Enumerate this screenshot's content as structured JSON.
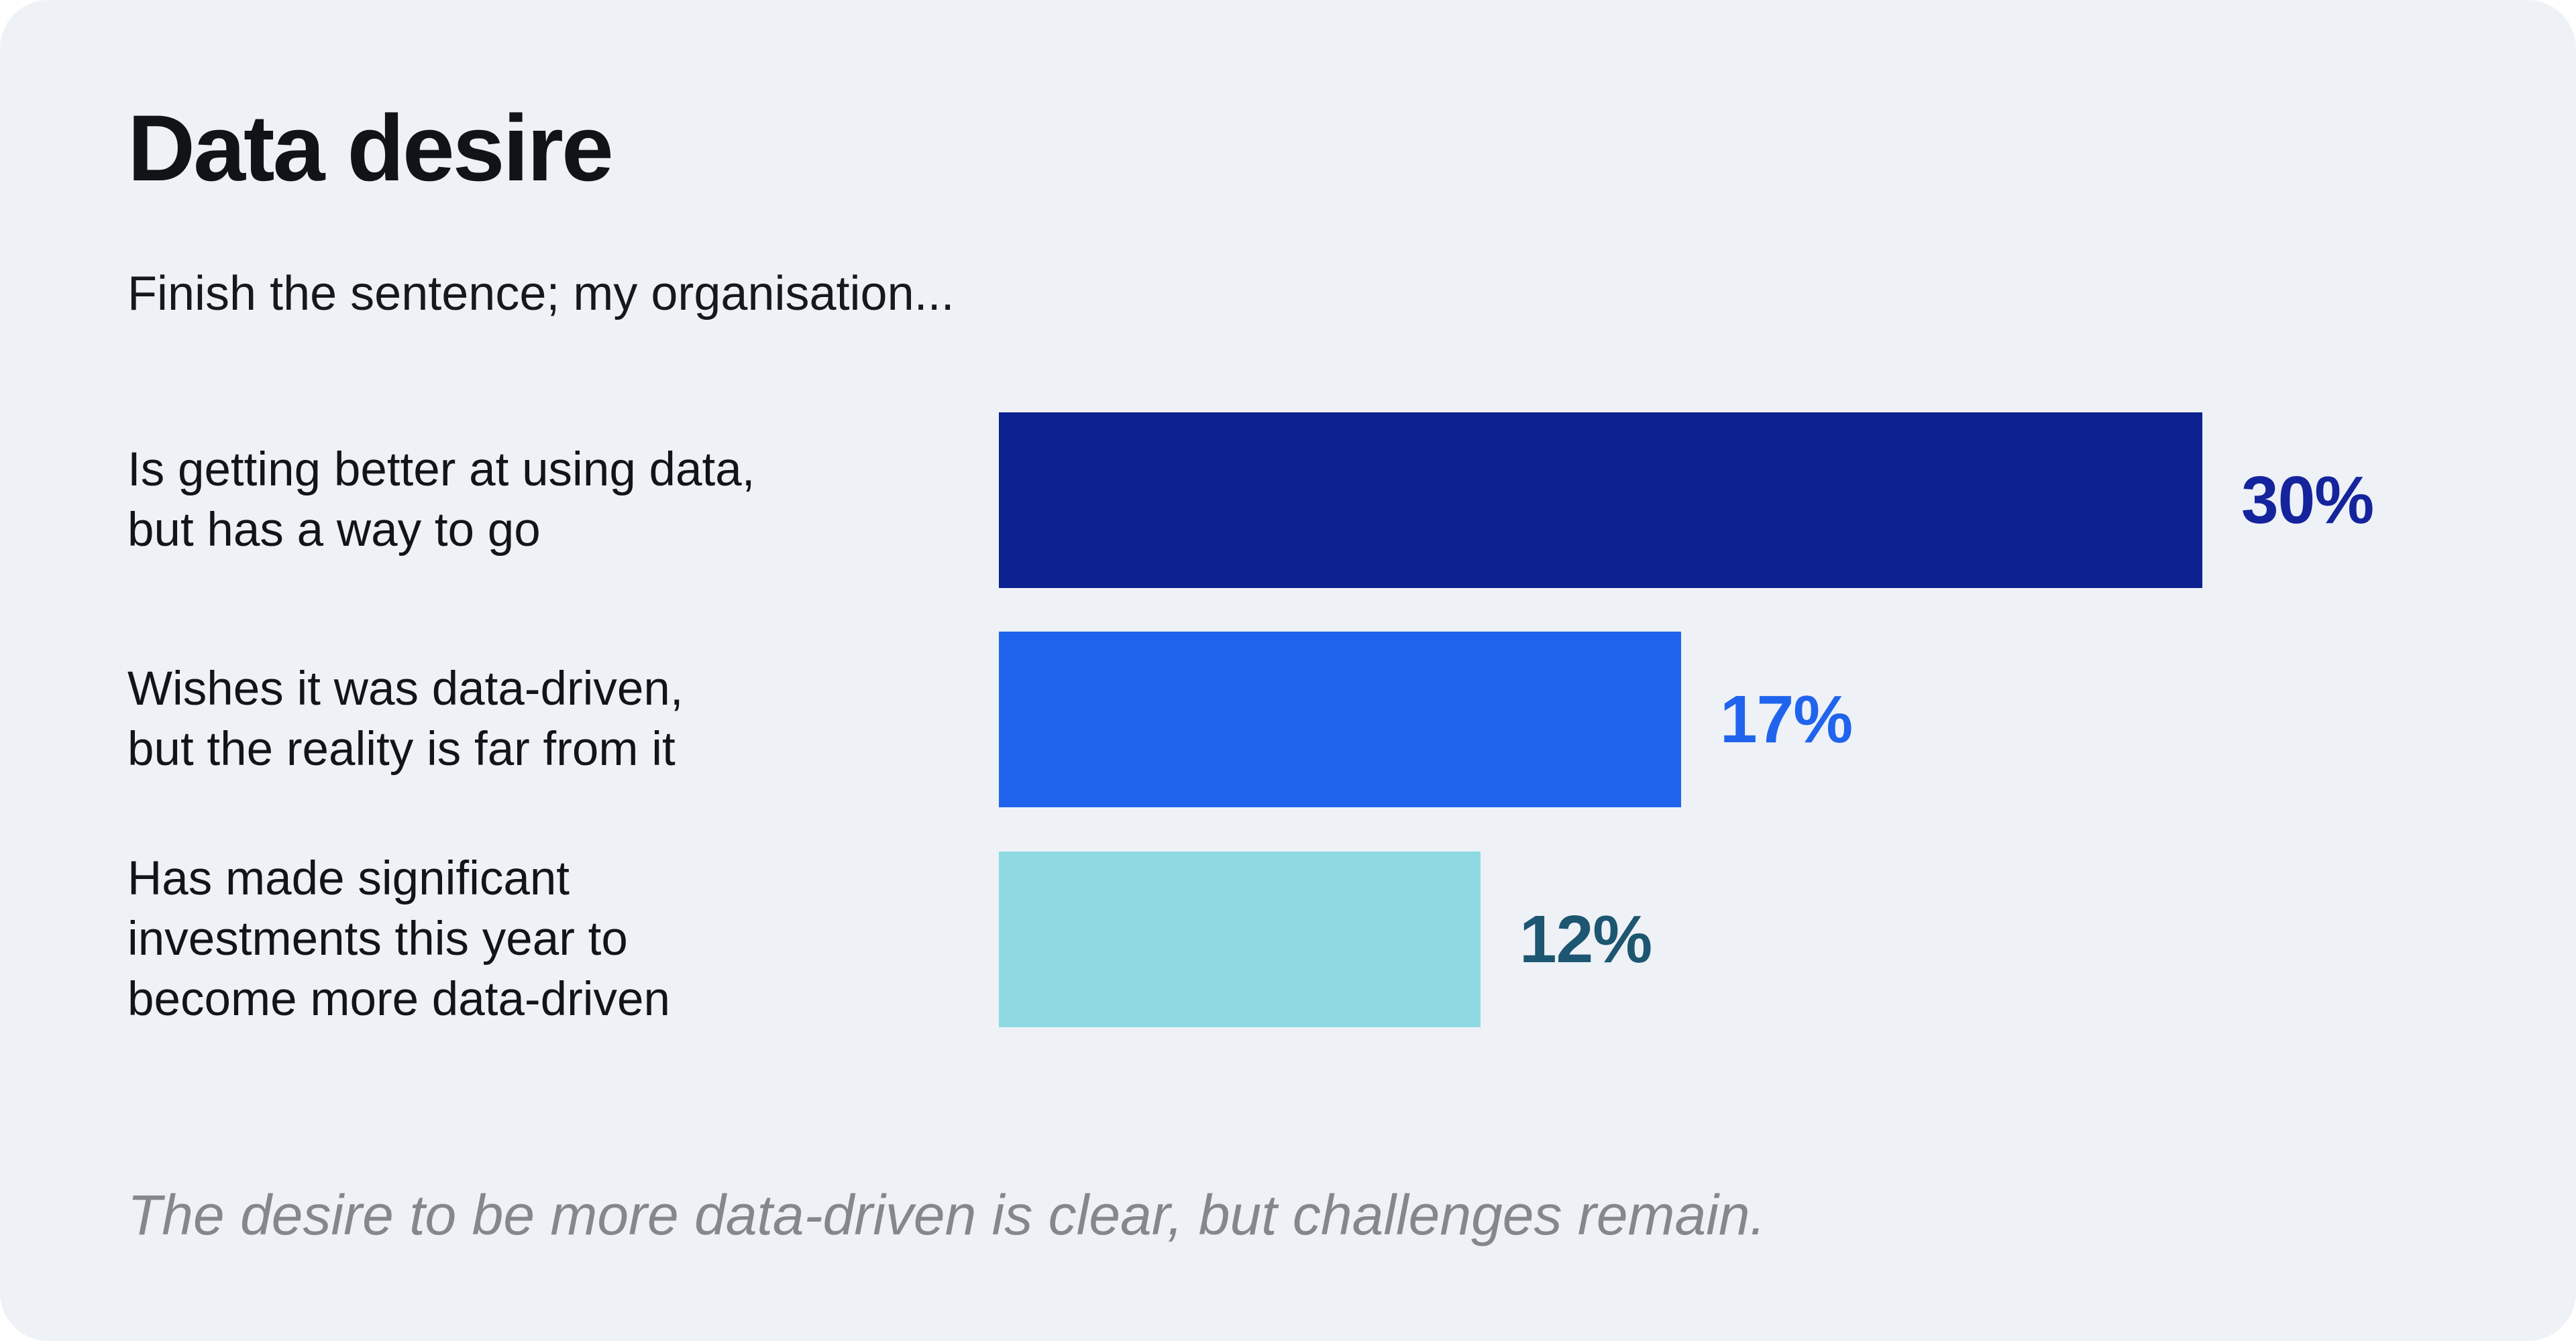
{
  "card": {
    "background_color": "#eef1f6",
    "page_background_color": "#ffffff"
  },
  "chart_data": {
    "type": "bar",
    "orientation": "horizontal",
    "title": "Data desire",
    "subtitle": "Finish the sentence; my organisation...",
    "categories": [
      "Is getting better at using data,\nbut has a way to go",
      "Wishes it was data-driven,\nbut the reality is far from it",
      "Has made significant\ninvestments this year to\nbecome more data-driven"
    ],
    "values": [
      30,
      17,
      12
    ],
    "unit": "%",
    "value_labels": [
      "30%",
      "17%",
      "12%"
    ],
    "bar_colors": [
      "#0e2190",
      "#2064ee",
      "#8fd9e2"
    ],
    "value_label_colors": [
      "#15249c",
      "#2064ee",
      "#1d5670"
    ],
    "xlim": [
      0,
      30
    ],
    "grid": false,
    "legend": false,
    "axes_shown": false,
    "annotation": "The desire to be more data-driven is clear, but challenges remain."
  }
}
